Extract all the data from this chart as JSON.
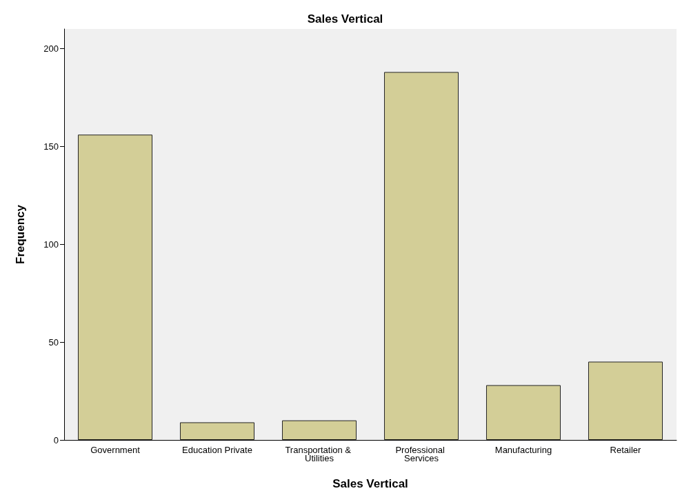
{
  "chart_data": {
    "type": "bar",
    "title": "Sales Vertical",
    "xlabel": "Sales Vertical",
    "ylabel": "Frequency",
    "categories": [
      "Government",
      "Education Private",
      "Transportation & Utilities",
      "Professional Services",
      "Manufacturing",
      "Retailer"
    ],
    "values": [
      156,
      9,
      10,
      188,
      28,
      40
    ],
    "color": "#d3ce97",
    "ylim": [
      0,
      210
    ],
    "yticks": [
      0,
      50,
      100,
      150,
      200
    ],
    "grid": false
  }
}
